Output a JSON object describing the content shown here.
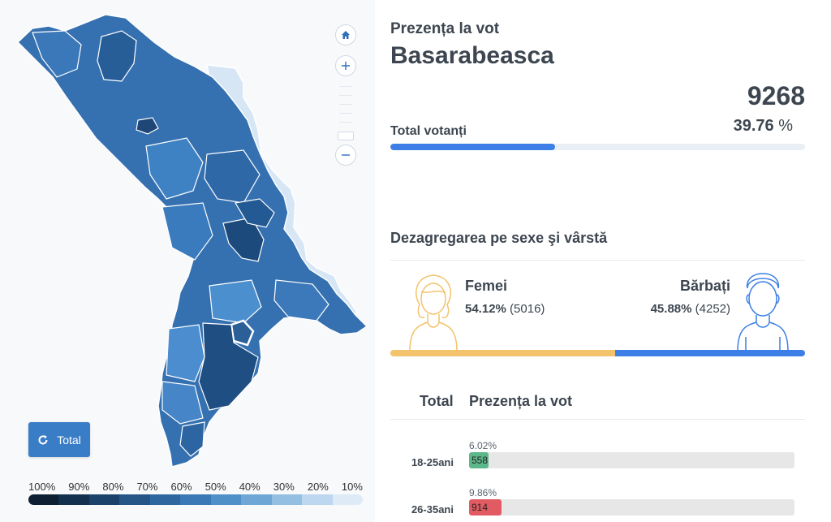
{
  "map": {
    "zoom_in_icon": "plus-icon",
    "zoom_out_icon": "minus-icon",
    "home_icon": "home-icon",
    "total_button": {
      "icon": "refresh-icon",
      "label": "Total"
    },
    "legend": {
      "labels": [
        "100%",
        "90%",
        "80%",
        "70%",
        "60%",
        "50%",
        "40%",
        "30%",
        "20%",
        "10%"
      ],
      "colors": [
        "#0c1f33",
        "#13304f",
        "#1b426b",
        "#255687",
        "#2e67a0",
        "#3a78b6",
        "#5090c9",
        "#6ea6d6",
        "#93bfe3",
        "#bcd7ef",
        "#deebf7"
      ]
    }
  },
  "info": {
    "subtitle": "Prezența la vot",
    "title": "Basarabeasca",
    "total_count": "9268",
    "total_pct": "39.76",
    "pct_sign": "%",
    "votanti_label": "Total votanți",
    "turnout_fraction": 0.3976,
    "section_title": "Dezagregarea pe sexe şi vârstă",
    "female": {
      "label": "Femei",
      "pct": "54.12%",
      "count": "(5016)",
      "fraction": 0.5412,
      "color": "#f2c36b"
    },
    "male": {
      "label": "Bărbați",
      "pct": "45.88%",
      "count": "(4252)",
      "fraction": 0.4588,
      "color": "#3d7fe6"
    },
    "table": {
      "col1": "Total",
      "col2": "Prezența la vot",
      "rows": [
        {
          "label": "18-25ani",
          "pct": "6.02%",
          "value": "558",
          "fraction": 0.0602,
          "color": "#5cb88a"
        },
        {
          "label": "26-35ani",
          "pct": "9.86%",
          "value": "914",
          "fraction": 0.0986,
          "color": "#e25b63"
        }
      ]
    }
  }
}
